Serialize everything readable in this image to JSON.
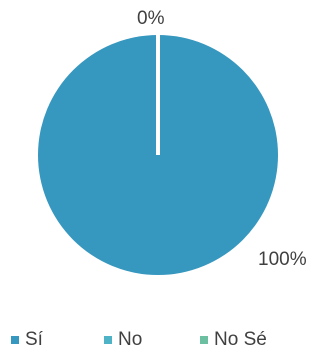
{
  "chart_data": {
    "type": "pie",
    "categories": [
      "Sí",
      "No",
      "No Sé"
    ],
    "values": [
      100,
      0,
      0
    ],
    "data_labels": [
      "100%",
      "0%",
      "0%"
    ],
    "colors": [
      "#3697bf",
      "#4fb3c8",
      "#6cc0a1"
    ],
    "slice_border_color": "#ffffff",
    "legend_placement": "bottom"
  },
  "legend": {
    "items": [
      {
        "label": "Sí",
        "color": "#3697bf"
      },
      {
        "label": "No",
        "color": "#4fb3c8"
      },
      {
        "label": "No Sé",
        "color": "#6cc0a1"
      }
    ]
  }
}
